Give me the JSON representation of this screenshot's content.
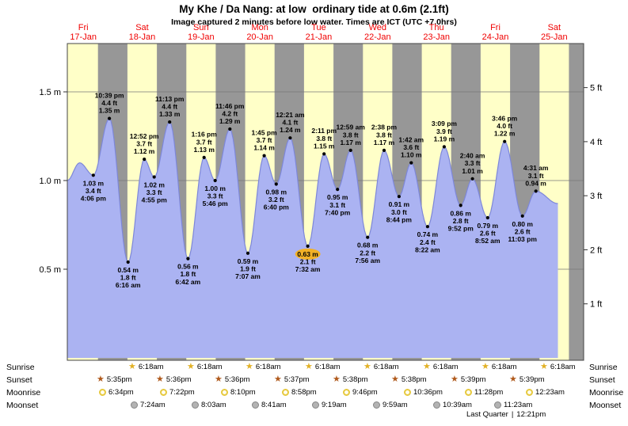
{
  "header": {
    "title": "My Khe / Da Nang: at low  ordinary tide at 0.6m (2.1ft)",
    "subtitle": "Image captured 2 minutes before low water. Times are ICT (UTC +7.0hrs)"
  },
  "colors": {
    "day_band": "#ffffc8",
    "night_band": "#979797",
    "tide_fill": "#abb3f2",
    "tide_stroke": "#7d87d9",
    "grid_line": "#777777",
    "day_label": "#f00000",
    "highlight": "#f2b127"
  },
  "chart_data": {
    "type": "area",
    "title": "My Khe / Da Nang tide height",
    "unit_left": "m",
    "unit_right": "ft",
    "days": [
      {
        "name": "Fri",
        "date": "17-Jan"
      },
      {
        "name": "Sat",
        "date": "18-Jan"
      },
      {
        "name": "Sun",
        "date": "19-Jan"
      },
      {
        "name": "Mon",
        "date": "20-Jan"
      },
      {
        "name": "Tue",
        "date": "21-Jan"
      },
      {
        "name": "Wed",
        "date": "22-Jan"
      },
      {
        "name": "Thu",
        "date": "23-Jan"
      },
      {
        "name": "Fri",
        "date": "24-Jan"
      },
      {
        "name": "Sat",
        "date": "25-Jan"
      }
    ],
    "y_ticks_m": [
      {
        "value": 0.5,
        "label": "0.5 m"
      },
      {
        "value": 1.0,
        "label": "1.0 m"
      },
      {
        "value": 1.5,
        "label": "1.5 m"
      }
    ],
    "y_ticks_ft": [
      {
        "value": 1,
        "label": "1 ft"
      },
      {
        "value": 2,
        "label": "2 ft"
      },
      {
        "value": 3,
        "label": "3 ft"
      },
      {
        "value": 4,
        "label": "4 ft"
      },
      {
        "value": 5,
        "label": "5 ft"
      }
    ],
    "tide_events": [
      {
        "day": 0,
        "time24": "16:06",
        "time": "4:06 pm",
        "height_m": 1.03,
        "height_ft": 3.4,
        "annotation": "below"
      },
      {
        "day": 0,
        "time24": "22:39",
        "time": "10:39 pm",
        "height_m": 1.35,
        "height_ft": 4.4,
        "annotation": "above"
      },
      {
        "day": 1,
        "time24": "06:16",
        "time": "6:16 am",
        "height_m": 0.54,
        "height_ft": 1.8,
        "annotation": "below"
      },
      {
        "day": 1,
        "time24": "12:52",
        "time": "12:52 pm",
        "height_m": 1.12,
        "height_ft": 3.7,
        "annotation": "above"
      },
      {
        "day": 1,
        "time24": "16:55",
        "time": "4:55 pm",
        "height_m": 1.02,
        "height_ft": 3.3,
        "annotation": "below"
      },
      {
        "day": 1,
        "time24": "23:13",
        "time": "11:13 pm",
        "height_m": 1.33,
        "height_ft": 4.4,
        "annotation": "above"
      },
      {
        "day": 2,
        "time24": "06:42",
        "time": "6:42 am",
        "height_m": 0.56,
        "height_ft": 1.8,
        "annotation": "below"
      },
      {
        "day": 2,
        "time24": "13:16",
        "time": "1:16 pm",
        "height_m": 1.13,
        "height_ft": 3.7,
        "annotation": "above"
      },
      {
        "day": 2,
        "time24": "17:46",
        "time": "5:46 pm",
        "height_m": 1.0,
        "height_ft": 3.3,
        "annotation": "below"
      },
      {
        "day": 2,
        "time24": "23:46",
        "time": "11:46 pm",
        "height_m": 1.29,
        "height_ft": 4.2,
        "annotation": "above"
      },
      {
        "day": 3,
        "time24": "07:07",
        "time": "7:07 am",
        "height_m": 0.59,
        "height_ft": 1.9,
        "annotation": "below"
      },
      {
        "day": 3,
        "time24": "13:45",
        "time": "1:45 pm",
        "height_m": 1.14,
        "height_ft": 3.7,
        "annotation": "above"
      },
      {
        "day": 3,
        "time24": "18:40",
        "time": "6:40 pm",
        "height_m": 0.98,
        "height_ft": 3.2,
        "annotation": "below"
      },
      {
        "day": 4,
        "time24": "00:21",
        "time": "12:21 am",
        "height_m": 1.24,
        "height_ft": 4.1,
        "annotation": "above"
      },
      {
        "day": 4,
        "time24": "07:32",
        "time": "7:32 am",
        "height_m": 0.63,
        "height_ft": 2.1,
        "annotation": "below",
        "highlight": true
      },
      {
        "day": 4,
        "time24": "14:11",
        "time": "2:11 pm",
        "height_m": 1.15,
        "height_ft": 3.8,
        "annotation": "above"
      },
      {
        "day": 4,
        "time24": "19:40",
        "time": "7:40 pm",
        "height_m": 0.95,
        "height_ft": 3.1,
        "annotation": "below"
      },
      {
        "day": 5,
        "time24": "00:59",
        "time": "12:59 am",
        "height_m": 1.17,
        "height_ft": 3.8,
        "annotation": "above"
      },
      {
        "day": 5,
        "time24": "07:56",
        "time": "7:56 am",
        "height_m": 0.68,
        "height_ft": 2.2,
        "annotation": "below"
      },
      {
        "day": 5,
        "time24": "14:38",
        "time": "2:38 pm",
        "height_m": 1.17,
        "height_ft": 3.8,
        "annotation": "above"
      },
      {
        "day": 5,
        "time24": "20:44",
        "time": "8:44 pm",
        "height_m": 0.91,
        "height_ft": 3.0,
        "annotation": "below"
      },
      {
        "day": 6,
        "time24": "01:42",
        "time": "1:42 am",
        "height_m": 1.1,
        "height_ft": 3.6,
        "annotation": "above"
      },
      {
        "day": 6,
        "time24": "08:22",
        "time": "8:22 am",
        "height_m": 0.74,
        "height_ft": 2.4,
        "annotation": "below"
      },
      {
        "day": 6,
        "time24": "15:09",
        "time": "3:09 pm",
        "height_m": 1.19,
        "height_ft": 3.9,
        "annotation": "above"
      },
      {
        "day": 6,
        "time24": "21:52",
        "time": "9:52 pm",
        "height_m": 0.86,
        "height_ft": 2.8,
        "annotation": "below"
      },
      {
        "day": 7,
        "time24": "02:40",
        "time": "2:40 am",
        "height_m": 1.01,
        "height_ft": 3.3,
        "annotation": "above"
      },
      {
        "day": 7,
        "time24": "08:52",
        "time": "8:52 am",
        "height_m": 0.79,
        "height_ft": 2.6,
        "annotation": "below"
      },
      {
        "day": 7,
        "time24": "15:46",
        "time": "3:46 pm",
        "height_m": 1.22,
        "height_ft": 4.0,
        "annotation": "above"
      },
      {
        "day": 7,
        "time24": "23:03",
        "time": "11:03 pm",
        "height_m": 0.8,
        "height_ft": 2.6,
        "annotation": "below"
      },
      {
        "day": 8,
        "time24": "04:31",
        "time": "4:31 am",
        "height_m": 0.94,
        "height_ft": 3.1,
        "annotation": "above"
      }
    ],
    "curve_edges": {
      "start_t": 5.5,
      "start_m": 1.0,
      "bump_t": 10.5,
      "bump_m": 1.1,
      "end_t": 205.5,
      "end_m": 0.87
    },
    "night_hours": {
      "from": 18,
      "to": 30
    }
  },
  "astro": {
    "sunrise": {
      "label": "Sunrise",
      "events": [
        {
          "day": 1,
          "time": "6:18am"
        },
        {
          "day": 2,
          "time": "6:18am"
        },
        {
          "day": 3,
          "time": "6:18am"
        },
        {
          "day": 4,
          "time": "6:18am"
        },
        {
          "day": 5,
          "time": "6:18am"
        },
        {
          "day": 6,
          "time": "6:18am"
        },
        {
          "day": 7,
          "time": "6:18am"
        },
        {
          "day": 8,
          "time": "6:18am"
        }
      ]
    },
    "sunset": {
      "label": "Sunset",
      "events": [
        {
          "day": 0,
          "time": "5:35pm"
        },
        {
          "day": 1,
          "time": "5:36pm"
        },
        {
          "day": 2,
          "time": "5:36pm"
        },
        {
          "day": 3,
          "time": "5:37pm"
        },
        {
          "day": 4,
          "time": "5:38pm"
        },
        {
          "day": 5,
          "time": "5:38pm"
        },
        {
          "day": 6,
          "time": "5:39pm"
        },
        {
          "day": 7,
          "time": "5:39pm"
        }
      ]
    },
    "moonrise": {
      "label": "Moonrise",
      "events": [
        {
          "day": 0,
          "time": "6:34pm"
        },
        {
          "day": 1,
          "time": "7:22pm"
        },
        {
          "day": 2,
          "time": "8:10pm"
        },
        {
          "day": 3,
          "time": "8:58pm"
        },
        {
          "day": 4,
          "time": "9:46pm"
        },
        {
          "day": 5,
          "time": "10:36pm"
        },
        {
          "day": 6,
          "time": "11:28pm"
        },
        {
          "day": 8,
          "time": "12:23am"
        }
      ]
    },
    "moonset": {
      "label": "Moonset",
      "events": [
        {
          "day": 1,
          "time": "7:24am"
        },
        {
          "day": 2,
          "time": "8:03am"
        },
        {
          "day": 3,
          "time": "8:41am"
        },
        {
          "day": 4,
          "time": "9:19am"
        },
        {
          "day": 5,
          "time": "9:59am"
        },
        {
          "day": 6,
          "time": "10:39am"
        },
        {
          "day": 7,
          "time": "11:23am"
        }
      ]
    },
    "moon_phase": {
      "name": "Last Quarter",
      "separator": "|",
      "time": "12:21pm"
    }
  }
}
